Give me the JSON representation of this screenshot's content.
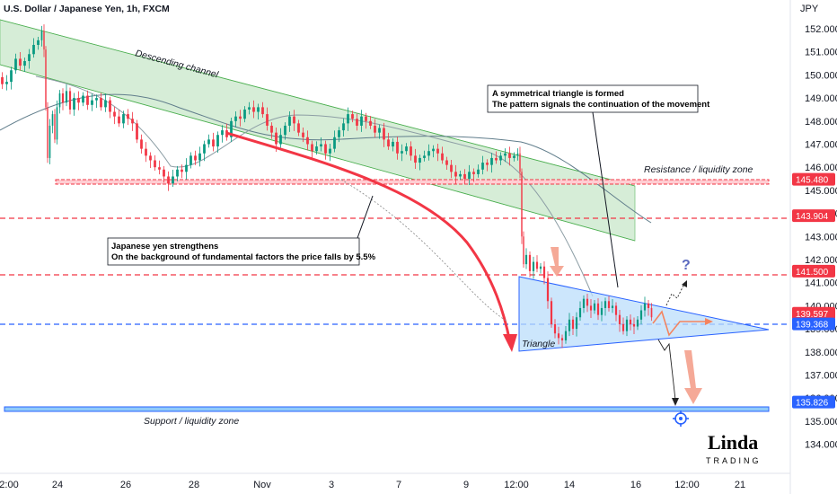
{
  "chart_data": {
    "type": "candlestick",
    "title": "U.S. Dollar / Japanese Yen, 1h, FXCM",
    "currency_label": "JPY",
    "y_ticks": [
      152.0,
      151.0,
      150.0,
      149.0,
      148.0,
      147.0,
      146.0,
      145.0,
      144.0,
      143.0,
      142.0,
      141.0,
      140.0,
      139.0,
      138.0,
      137.0,
      136.0,
      135.0,
      134.0
    ],
    "ylim": [
      133.5,
      152.5
    ],
    "x_ticks": [
      "2:00",
      "24",
      "26",
      "28",
      "Nov",
      "3",
      "7",
      "9",
      "12:00",
      "14",
      "16",
      "12:00",
      "21"
    ],
    "price_tags": [
      {
        "value": 145.48,
        "label": "145.480",
        "color": "#f23645"
      },
      {
        "value": 143.904,
        "label": "143.904",
        "color": "#f23645"
      },
      {
        "value": 141.5,
        "label": "141.500",
        "color": "#f23645"
      },
      {
        "value": 139.597,
        "label": "139.597",
        "color": "#f23645"
      },
      {
        "value": 139.368,
        "label": "139.368",
        "color": "#2962ff"
      },
      {
        "value": 135.826,
        "label": "135.826",
        "color": "#2962ff"
      }
    ],
    "price_path": [
      [
        0,
        149.9
      ],
      [
        5,
        149.6
      ],
      [
        10,
        149.7
      ],
      [
        15,
        150.2
      ],
      [
        20,
        150.7
      ],
      [
        25,
        150.4
      ],
      [
        30,
        150.6
      ],
      [
        35,
        150.9
      ],
      [
        40,
        151.3
      ],
      [
        45,
        151.5
      ],
      [
        48,
        151.9
      ],
      [
        50,
        151.1
      ],
      [
        52,
        148.6
      ],
      [
        54,
        146.4
      ],
      [
        57,
        147.8
      ],
      [
        60,
        148.3
      ],
      [
        62,
        147.2
      ],
      [
        65,
        148.6
      ],
      [
        68,
        149.2
      ],
      [
        72,
        148.8
      ],
      [
        76,
        149.3
      ],
      [
        80,
        148.5
      ],
      [
        85,
        149.0
      ],
      [
        90,
        148.8
      ],
      [
        95,
        149.1
      ],
      [
        100,
        148.7
      ],
      [
        105,
        148.9
      ],
      [
        110,
        149.0
      ],
      [
        115,
        148.6
      ],
      [
        120,
        148.9
      ],
      [
        125,
        148.4
      ],
      [
        130,
        148.2
      ],
      [
        135,
        147.9
      ],
      [
        140,
        148.3
      ],
      [
        145,
        148.1
      ],
      [
        150,
        147.9
      ],
      [
        155,
        147.2
      ],
      [
        160,
        146.8
      ],
      [
        165,
        146.5
      ],
      [
        170,
        146.3
      ],
      [
        175,
        146.0
      ],
      [
        180,
        145.9
      ],
      [
        185,
        145.6
      ],
      [
        190,
        145.3
      ],
      [
        195,
        145.6
      ],
      [
        200,
        145.9
      ],
      [
        205,
        145.8
      ],
      [
        210,
        146.1
      ],
      [
        215,
        146.5
      ],
      [
        220,
        146.3
      ],
      [
        225,
        146.6
      ],
      [
        230,
        147.0
      ],
      [
        235,
        147.2
      ],
      [
        240,
        146.9
      ],
      [
        245,
        147.4
      ],
      [
        250,
        147.6
      ],
      [
        255,
        147.3
      ],
      [
        260,
        148.0
      ],
      [
        265,
        148.2
      ],
      [
        270,
        148.1
      ],
      [
        275,
        148.5
      ],
      [
        280,
        148.6
      ],
      [
        285,
        148.4
      ],
      [
        290,
        148.6
      ],
      [
        295,
        148.3
      ],
      [
        300,
        147.8
      ],
      [
        305,
        147.5
      ],
      [
        310,
        147.0
      ],
      [
        315,
        147.4
      ],
      [
        320,
        147.8
      ],
      [
        325,
        148.2
      ],
      [
        330,
        147.9
      ],
      [
        335,
        147.5
      ],
      [
        340,
        147.3
      ],
      [
        345,
        147.0
      ],
      [
        350,
        146.7
      ],
      [
        355,
        146.9
      ],
      [
        360,
        147.0
      ],
      [
        365,
        146.6
      ],
      [
        370,
        146.8
      ],
      [
        375,
        147.3
      ],
      [
        380,
        147.6
      ],
      [
        385,
        147.9
      ],
      [
        390,
        148.3
      ],
      [
        395,
        148.1
      ],
      [
        400,
        147.8
      ],
      [
        405,
        148.2
      ],
      [
        410,
        148.0
      ],
      [
        415,
        147.8
      ],
      [
        420,
        147.5
      ],
      [
        425,
        147.7
      ],
      [
        430,
        147.2
      ],
      [
        435,
        146.9
      ],
      [
        440,
        147.1
      ],
      [
        445,
        146.6
      ],
      [
        450,
        146.7
      ],
      [
        455,
        146.9
      ],
      [
        460,
        146.5
      ],
      [
        465,
        146.2
      ],
      [
        470,
        146.4
      ],
      [
        475,
        146.5
      ],
      [
        480,
        146.7
      ],
      [
        485,
        146.8
      ],
      [
        490,
        146.6
      ],
      [
        495,
        146.3
      ],
      [
        500,
        146.1
      ],
      [
        505,
        145.8
      ],
      [
        510,
        145.6
      ],
      [
        515,
        145.7
      ],
      [
        520,
        145.5
      ],
      [
        525,
        145.8
      ],
      [
        530,
        145.7
      ],
      [
        535,
        145.9
      ],
      [
        540,
        146.2
      ],
      [
        545,
        146.1
      ],
      [
        550,
        146.4
      ],
      [
        555,
        146.3
      ],
      [
        560,
        146.5
      ],
      [
        565,
        146.6
      ],
      [
        570,
        146.4
      ],
      [
        575,
        146.5
      ],
      [
        578,
        146.6
      ],
      [
        580,
        145.8
      ],
      [
        582,
        143.0
      ],
      [
        584,
        141.8
      ],
      [
        588,
        142.2
      ],
      [
        592,
        141.5
      ],
      [
        596,
        141.9
      ],
      [
        600,
        141.6
      ],
      [
        604,
        141.7
      ],
      [
        608,
        141.2
      ],
      [
        612,
        140.2
      ],
      [
        616,
        139.2
      ],
      [
        620,
        138.8
      ],
      [
        624,
        138.6
      ],
      [
        628,
        138.5
      ],
      [
        632,
        138.9
      ],
      [
        636,
        139.4
      ],
      [
        640,
        139.0
      ],
      [
        644,
        139.5
      ],
      [
        648,
        139.9
      ],
      [
        652,
        140.3
      ],
      [
        656,
        140.0
      ],
      [
        660,
        139.8
      ],
      [
        664,
        140.1
      ],
      [
        668,
        139.6
      ],
      [
        672,
        139.9
      ],
      [
        676,
        140.2
      ],
      [
        680,
        139.9
      ],
      [
        684,
        140.0
      ],
      [
        688,
        139.6
      ],
      [
        692,
        139.2
      ],
      [
        696,
        138.9
      ],
      [
        700,
        139.4
      ],
      [
        704,
        139.2
      ],
      [
        708,
        139.1
      ],
      [
        712,
        139.4
      ],
      [
        716,
        139.8
      ],
      [
        720,
        140.1
      ],
      [
        724,
        139.9
      ],
      [
        727,
        139.5
      ]
    ],
    "annotations": {
      "channel_label": "Descending channel",
      "resistance_label": "Resistance / liquidity zone",
      "support_label": "Support / liquidity zone",
      "triangle_label": "Triangle",
      "triangle_note_line1": "A symmetrical triangle is formed",
      "triangle_note_line2": "The pattern signals the continuation of the movement",
      "yen_note_line1": "Japanese yen strengthens",
      "yen_note_line2": "On the background of fundamental factors the price falls by 5.5%",
      "question_mark": "?"
    },
    "colors": {
      "bullish": "#089981",
      "bearish": "#f23645",
      "channel_fill": "#a5d6a7",
      "triangle_fill": "#bbdefb",
      "resistance": "#f23645",
      "support": "#2962ff",
      "projection": "#f28b66"
    }
  },
  "logo": {
    "main": "Linda",
    "sub": "TRADING"
  }
}
